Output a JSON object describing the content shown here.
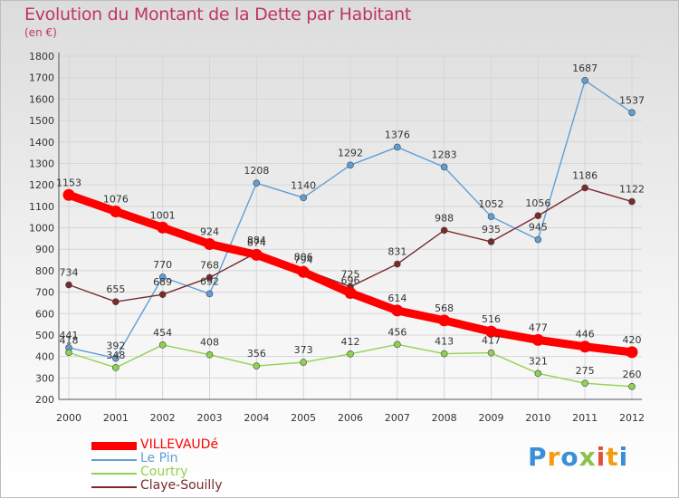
{
  "title": "Evolution du Montant de la Dette par Habitant",
  "unit_label": "(en €)",
  "colors": {
    "title": "#c0336a",
    "grid": "#d6d6d6",
    "axis": "#555555"
  },
  "chart_data": {
    "type": "line",
    "x": [
      "2000",
      "2001",
      "2002",
      "2003",
      "2004",
      "2005",
      "2006",
      "2007",
      "2008",
      "2009",
      "2010",
      "2011",
      "2012"
    ],
    "ylim": [
      200,
      1800
    ],
    "yticks": [
      200,
      300,
      400,
      500,
      600,
      700,
      800,
      900,
      1000,
      1100,
      1200,
      1300,
      1400,
      1500,
      1600,
      1700,
      1800
    ],
    "grid": true,
    "legend_position": "bottom-left",
    "series": [
      {
        "name": "VILLEVAUDé",
        "color": "#ff0000",
        "values": [
          1153,
          1076,
          1001,
          924,
          874,
          794,
          696,
          614,
          568,
          516,
          477,
          446,
          420
        ]
      },
      {
        "name": "Le Pin",
        "color": "#5f9fd6",
        "values": [
          441,
          392,
          770,
          692,
          1208,
          1140,
          1292,
          1376,
          1283,
          1052,
          945,
          1687,
          1537
        ]
      },
      {
        "name": "Courtry",
        "color": "#8fd24f",
        "values": [
          418,
          348,
          454,
          408,
          356,
          373,
          412,
          456,
          413,
          417,
          321,
          275,
          260
        ]
      },
      {
        "name": "Claye-Souilly",
        "color": "#7a2a2a",
        "values": [
          734,
          655,
          689,
          768,
          884,
          806,
          725,
          831,
          988,
          935,
          1056,
          1186,
          1122
        ]
      }
    ]
  },
  "logo": {
    "letters": [
      "P",
      "r",
      "o",
      "x",
      "i",
      "t",
      "i"
    ],
    "colors": [
      "#3a8fd8",
      "#f39c12",
      "#3a8fd8",
      "#8bc34a",
      "#e74c3c",
      "#f39c12",
      "#3a8fd8"
    ]
  }
}
